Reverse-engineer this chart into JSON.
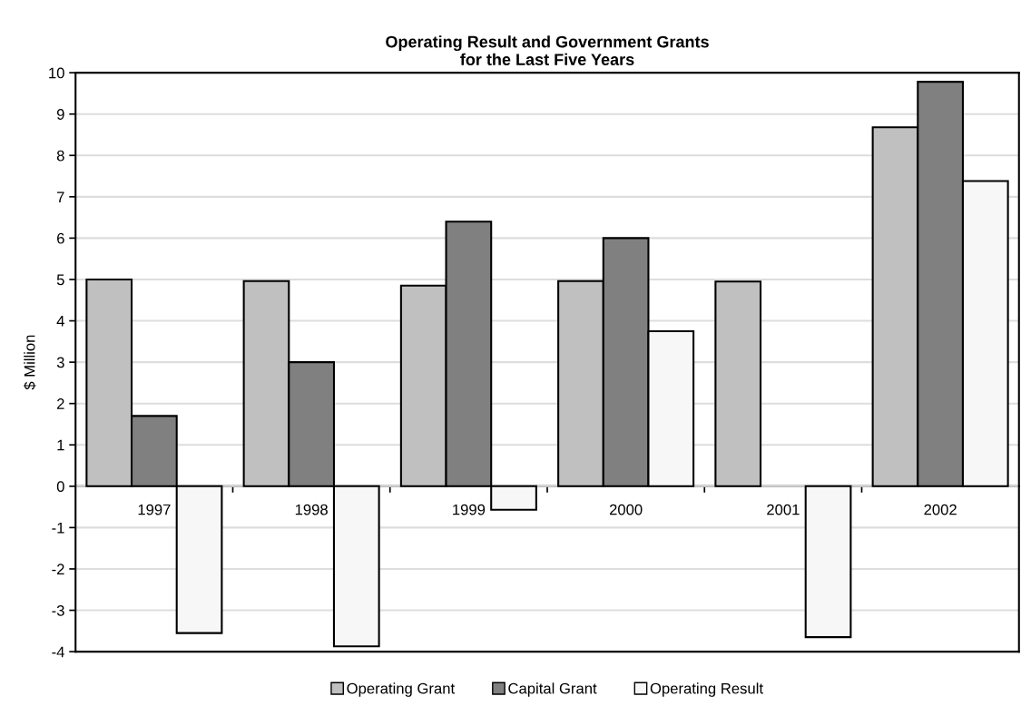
{
  "chart_data": {
    "type": "bar",
    "title": "Operating Result and Government Grants\nfor the Last Five Years",
    "ylabel": "$ Million",
    "categories": [
      "1997",
      "1998",
      "1999",
      "2000",
      "2001",
      "2002"
    ],
    "series": [
      {
        "name": "Operating Grant",
        "color": "#c0c0c0",
        "values": [
          5.0,
          4.96,
          4.85,
          4.96,
          4.95,
          8.68
        ]
      },
      {
        "name": "Capital Grant",
        "color": "#808080",
        "values": [
          1.7,
          3.0,
          6.4,
          6.0,
          null,
          9.78
        ]
      },
      {
        "name": "Operating Result",
        "color": "#f7f7f7",
        "values": [
          -3.55,
          -3.87,
          -0.57,
          3.75,
          -3.65,
          7.38
        ]
      }
    ],
    "ylim": [
      -4,
      10
    ],
    "yticks": [
      -4,
      -3,
      -2,
      -1,
      0,
      1,
      2,
      3,
      4,
      5,
      6,
      7,
      8,
      9,
      10
    ],
    "grid": "y",
    "legend": "bottom"
  }
}
